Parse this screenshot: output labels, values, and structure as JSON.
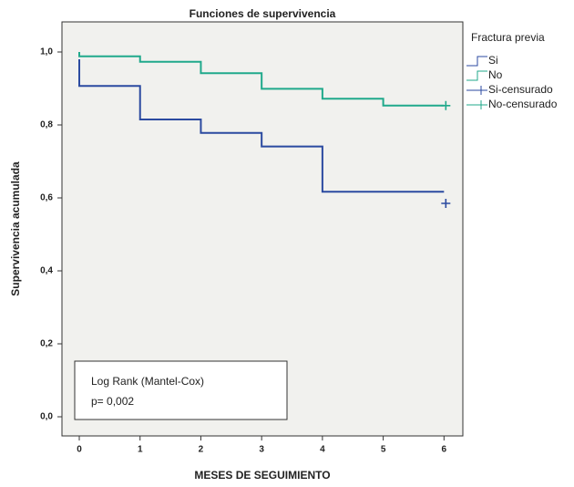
{
  "chart_data": {
    "type": "line",
    "title": "Funciones de supervivencia",
    "xlabel": "MESES DE SEGUIMIENTO",
    "ylabel": "Supervivencia acumulada",
    "xlim": [
      -0.285,
      6.31
    ],
    "ylim": [
      -0.0525,
      1.0825
    ],
    "xticks": [
      0,
      1,
      2,
      3,
      4,
      5,
      6
    ],
    "yticks": [
      {
        "value": 0,
        "label": "0,0"
      },
      {
        "value": 0.2,
        "label": "0,2"
      },
      {
        "value": 0.4,
        "label": "0,4"
      },
      {
        "value": 0.6,
        "label": "0,6"
      },
      {
        "value": 0.8,
        "label": "0,8"
      },
      {
        "value": 1,
        "label": "1,0"
      }
    ],
    "legend_title": "Fractura previa",
    "legend_position": "outside right",
    "series": [
      {
        "name": "Si",
        "color": "#2b4aa0",
        "drawstyle": "steps-post",
        "x": [
          0,
          0,
          1,
          2,
          3,
          4,
          6
        ],
        "values": [
          0.98,
          0.907,
          0.815,
          0.778,
          0.741,
          0.617,
          0.617
        ]
      },
      {
        "name": "No",
        "color": "#20a98b",
        "drawstyle": "steps-post",
        "x": [
          0,
          0,
          1,
          2,
          3,
          4,
          5,
          6
        ],
        "values": [
          1,
          0.988,
          0.973,
          0.942,
          0.899,
          0.872,
          0.853,
          0.853
        ]
      },
      {
        "name": "Si-censurado",
        "color": "#2b4aa0",
        "marker": "+",
        "x": [
          6
        ],
        "values": [
          0.585
        ]
      },
      {
        "name": "No-censurado",
        "color": "#20a98b",
        "marker": "+",
        "x": [
          6
        ],
        "values": [
          0.853
        ]
      }
    ],
    "annotations": [
      "Log Rank (Mantel-Cox)",
      "p= 0,002"
    ]
  }
}
